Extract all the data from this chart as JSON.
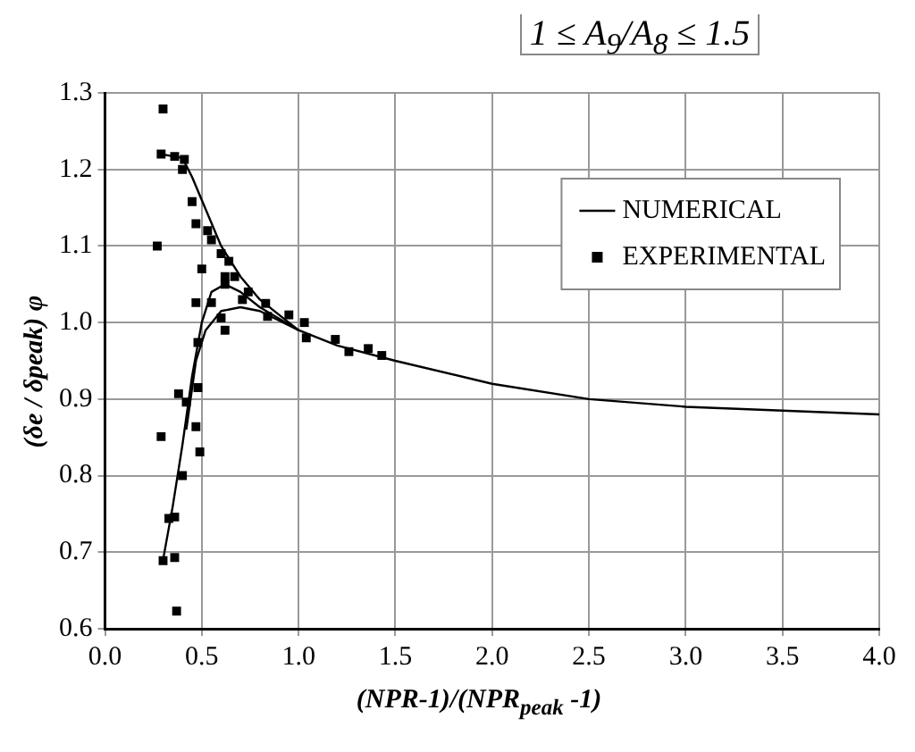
{
  "chart_data": {
    "type": "scatter",
    "title": "1 ≤ A$_{9}$/A$_{8}$ ≤ 1.5",
    "xlabel": "(NPR-1)/(NPR$_{peak}$ -1)",
    "ylabel": "(δe / δpeak) φ",
    "xlim": [
      0,
      4
    ],
    "xticks": [
      {
        "value": 0,
        "label": "0.0"
      },
      0.5,
      {
        "value": 1,
        "label": "1.0"
      },
      1.5,
      {
        "value": 2,
        "label": "2.0"
      },
      2.5,
      {
        "value": 3,
        "label": "3.0"
      },
      3.5,
      {
        "value": 4,
        "label": "4.0"
      }
    ],
    "ylim": [
      0.6,
      1.3
    ],
    "yticks": [
      0.6,
      0.7,
      0.8,
      0.9,
      {
        "value": 1,
        "label": "1.0"
      },
      1.1,
      1.2,
      1.3
    ],
    "grid": true,
    "legend": "top right",
    "series": [
      {
        "name": "NUMERICAL",
        "type": "line",
        "color": "#000000",
        "marker": "none",
        "line_style": "solid",
        "x": [
          0.29,
          0.4,
          0.45,
          0.5,
          0.6,
          0.7,
          0.8,
          0.9,
          1.0,
          1.2,
          1.5,
          2.0,
          2.5,
          3.0,
          3.5,
          4.0
        ],
        "values": [
          1.22,
          1.215,
          1.19,
          1.16,
          1.1,
          1.06,
          1.03,
          1.01,
          0.99,
          0.97,
          0.95,
          0.92,
          0.9,
          0.89,
          0.885,
          0.88
        ]
      },
      {
        "type": "line",
        "color": "#000000",
        "marker": "none",
        "line_style": "solid",
        "x": [
          0.3,
          0.35,
          0.4,
          0.45,
          0.5,
          0.55,
          0.62,
          0.7,
          0.8,
          1.0
        ],
        "values": [
          0.69,
          0.76,
          0.84,
          0.93,
          1.0,
          1.04,
          1.05,
          1.04,
          1.02,
          0.99
        ]
      },
      {
        "type": "line",
        "color": "#000000",
        "marker": "none",
        "line_style": "solid",
        "x": [
          0.42,
          0.47,
          0.52,
          0.6,
          0.7,
          0.8,
          1.0
        ],
        "values": [
          0.86,
          0.95,
          0.99,
          1.015,
          1.02,
          1.015,
          0.99
        ]
      },
      {
        "name": "EXPERIMENTAL",
        "type": "scatter",
        "color": "#000000",
        "marker": "square",
        "x": [
          0.3,
          0.29,
          0.36,
          0.41,
          0.4,
          0.45,
          0.47,
          0.53,
          0.55,
          0.6,
          0.64,
          0.5,
          0.62,
          0.67,
          0.62,
          0.74,
          0.71,
          0.83,
          0.84,
          0.95,
          1.03,
          1.04,
          0.27,
          0.47,
          0.55,
          0.6,
          0.62,
          0.48,
          0.38,
          0.42,
          0.48,
          0.29,
          0.47,
          0.49,
          0.4,
          0.33,
          0.36,
          0.3,
          0.36,
          0.37,
          1.19,
          1.26,
          1.36,
          1.43
        ],
        "values": [
          1.279,
          1.22,
          1.217,
          1.213,
          1.2,
          1.158,
          1.129,
          1.12,
          1.108,
          1.09,
          1.08,
          1.07,
          1.06,
          1.06,
          1.05,
          1.04,
          1.03,
          1.025,
          1.008,
          1.01,
          1.0,
          0.98,
          1.1,
          1.026,
          1.026,
          1.006,
          0.99,
          0.974,
          0.907,
          0.896,
          0.915,
          0.851,
          0.864,
          0.831,
          0.8,
          0.744,
          0.746,
          0.689,
          0.693,
          0.623,
          0.978,
          0.962,
          0.966,
          0.957
        ]
      }
    ]
  }
}
